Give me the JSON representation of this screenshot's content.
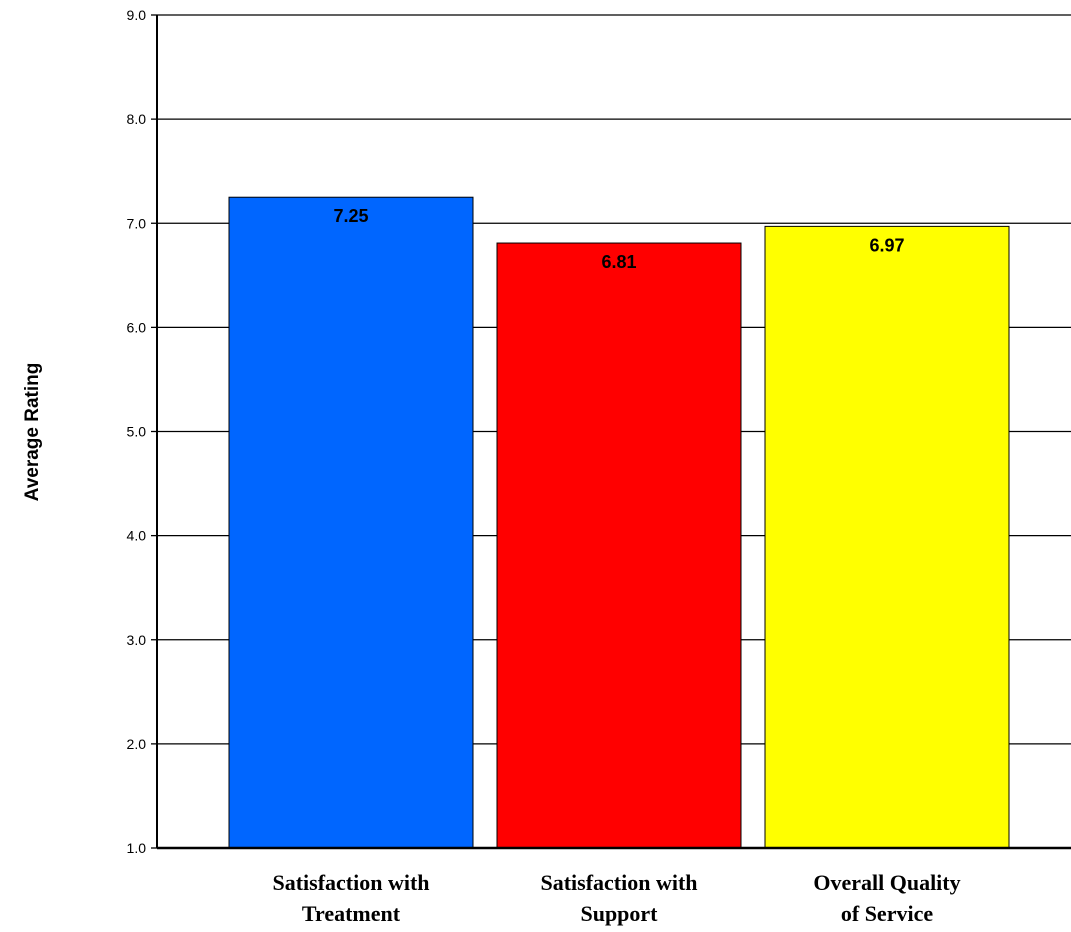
{
  "chart_data": {
    "type": "bar",
    "categories": [
      [
        "Satisfaction with",
        "Treatment"
      ],
      [
        "Satisfaction with",
        "Support"
      ],
      [
        "Overall Quality",
        "of Service"
      ]
    ],
    "values": [
      7.25,
      6.81,
      6.97
    ],
    "data_labels": [
      "7.25",
      "6.81",
      "6.97"
    ],
    "colors": [
      "#0066FF",
      "#FF0000",
      "#FFFF00"
    ],
    "title": "",
    "xlabel": "",
    "ylabel": "Average Rating",
    "ylim": [
      1.0,
      9.0
    ],
    "yticks": [
      "1.0",
      "2.0",
      "3.0",
      "4.0",
      "5.0",
      "6.0",
      "7.0",
      "8.0",
      "9.0"
    ],
    "grid": true,
    "legend": "none"
  }
}
